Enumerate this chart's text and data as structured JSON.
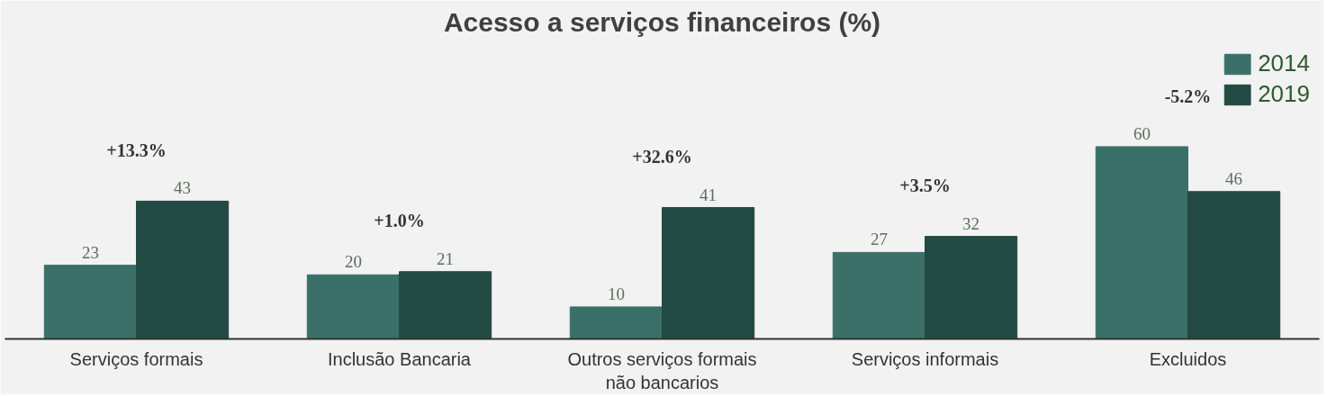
{
  "chart_data": {
    "type": "bar",
    "title": "Acesso a serviços financeiros (%)",
    "categories": [
      "Serviços formais",
      "Inclusão Bancaria",
      "Outros serviços formais não bancarios",
      "Serviços informais",
      "Excluidos"
    ],
    "series": [
      {
        "name": "2014",
        "color": "#3a7068",
        "values": [
          23,
          20,
          10,
          27,
          60
        ]
      },
      {
        "name": "2019",
        "color": "#234a43",
        "values": [
          43,
          21,
          41,
          32,
          46
        ]
      }
    ],
    "data_labels": true,
    "legend": "top right",
    "grid": false,
    "annotations": [
      "+13.3%",
      "+1.0%",
      "+32.6%",
      "+3.5%",
      "-5.2%"
    ]
  }
}
